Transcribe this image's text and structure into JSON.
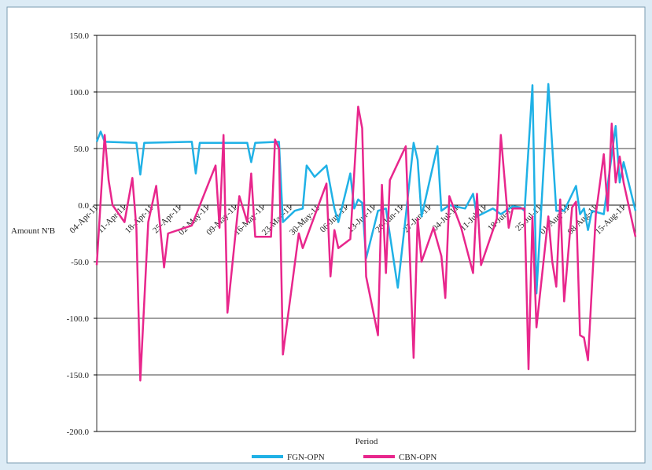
{
  "chart_data": {
    "type": "line",
    "x_label": "Period",
    "y_label": "Amount N'B",
    "xlim": [
      "2011-04-04",
      "2011-08-18"
    ],
    "xticks": [
      {
        "value": "2011-04-04",
        "label": "04-Apr-11"
      },
      {
        "value": "2011-04-11",
        "label": "11-Apr-11"
      },
      {
        "value": "2011-04-18",
        "label": "18-Apr-11"
      },
      {
        "value": "2011-04-25",
        "label": "25-Apr-11"
      },
      {
        "value": "2011-05-02",
        "label": "02-May-11"
      },
      {
        "value": "2011-05-09",
        "label": "09-May-11"
      },
      {
        "value": "2011-05-16",
        "label": "16-May-11"
      },
      {
        "value": "2011-05-23",
        "label": "23-May-11"
      },
      {
        "value": "2011-05-30",
        "label": "30-May-11"
      },
      {
        "value": "2011-06-06",
        "label": "06-Jun-11"
      },
      {
        "value": "2011-06-13",
        "label": "13-Jun-11"
      },
      {
        "value": "2011-06-20",
        "label": "20-Jun-11"
      },
      {
        "value": "2011-06-27",
        "label": "27-Jun-11"
      },
      {
        "value": "2011-07-04",
        "label": "04-Jul-11"
      },
      {
        "value": "2011-07-11",
        "label": "11-Jul-11"
      },
      {
        "value": "2011-07-18",
        "label": "18-Jul-11"
      },
      {
        "value": "2011-07-25",
        "label": "25-Jul-11"
      },
      {
        "value": "2011-08-01",
        "label": "01-Aug-11"
      },
      {
        "value": "2011-08-08",
        "label": "08-Aug-11"
      },
      {
        "value": "2011-08-15",
        "label": "15-Aug-11"
      }
    ],
    "ylim": [
      -200,
      150
    ],
    "yticks": [
      {
        "value": -200,
        "label": "-200.0"
      },
      {
        "value": -150,
        "label": "-150.0"
      },
      {
        "value": -100,
        "label": "-100.0"
      },
      {
        "value": -50,
        "label": "-50.0"
      },
      {
        "value": 0,
        "label": "0.0"
      },
      {
        "value": 50,
        "label": "50.0"
      },
      {
        "value": 100,
        "label": "100.0"
      },
      {
        "value": 150,
        "label": "150.0"
      }
    ],
    "grid": true,
    "legend": "bottom",
    "series": [
      {
        "name": "FGN-OPN",
        "color": "#1fb1e6",
        "x": [
          "2011-04-04",
          "2011-04-05",
          "2011-04-06",
          "2011-04-14",
          "2011-04-15",
          "2011-04-16",
          "2011-04-28",
          "2011-04-29",
          "2011-04-30",
          "2011-05-12",
          "2011-05-13",
          "2011-05-14",
          "2011-05-20",
          "2011-05-21",
          "2011-05-24",
          "2011-05-26",
          "2011-05-27",
          "2011-05-29",
          "2011-06-01",
          "2011-06-03",
          "2011-06-04",
          "2011-06-07",
          "2011-06-08",
          "2011-06-09",
          "2011-06-10",
          "2011-06-11",
          "2011-06-14",
          "2011-06-16",
          "2011-06-19",
          "2011-06-21",
          "2011-06-23",
          "2011-06-24",
          "2011-06-25",
          "2011-06-29",
          "2011-06-30",
          "2011-07-02",
          "2011-07-06",
          "2011-07-08",
          "2011-07-09",
          "2011-07-13",
          "2011-07-15",
          "2011-07-18",
          "2011-07-20",
          "2011-07-21",
          "2011-07-23",
          "2011-07-24",
          "2011-07-27",
          "2011-07-29",
          "2011-07-31",
          "2011-08-03",
          "2011-08-04",
          "2011-08-05",
          "2011-08-06",
          "2011-08-07",
          "2011-08-10",
          "2011-08-13",
          "2011-08-14",
          "2011-08-15",
          "2011-08-18"
        ],
        "values": [
          56,
          65,
          56,
          55,
          27,
          55,
          56,
          28,
          55,
          55,
          38,
          55,
          56,
          -15,
          -5,
          -3,
          35,
          25,
          35,
          -3,
          -15,
          28,
          -3,
          5,
          2,
          -47,
          -5,
          -3,
          -73,
          -10,
          55,
          40,
          -10,
          52,
          -5,
          0,
          -3,
          10,
          -10,
          -3,
          -8,
          -1,
          -2,
          -5,
          106,
          -78,
          107,
          -5,
          -5,
          17,
          -8,
          -3,
          -22,
          -5,
          -8,
          70,
          20,
          38,
          -5
        ]
      },
      {
        "name": "CBN-OPN",
        "color": "#e8268c",
        "x": [
          "2011-04-04",
          "2011-04-06",
          "2011-04-07",
          "2011-04-08",
          "2011-04-11",
          "2011-04-13",
          "2011-04-14",
          "2011-04-15",
          "2011-04-17",
          "2011-04-19",
          "2011-04-21",
          "2011-04-22",
          "2011-04-28",
          "2011-05-04",
          "2011-05-05",
          "2011-05-06",
          "2011-05-07",
          "2011-05-10",
          "2011-05-12",
          "2011-05-13",
          "2011-05-14",
          "2011-05-18",
          "2011-05-19",
          "2011-05-20",
          "2011-05-21",
          "2011-05-25",
          "2011-05-26",
          "2011-06-01",
          "2011-06-02",
          "2011-06-03",
          "2011-06-04",
          "2011-06-07",
          "2011-06-09",
          "2011-06-10",
          "2011-06-11",
          "2011-06-14",
          "2011-06-15",
          "2011-06-16",
          "2011-06-17",
          "2011-06-21",
          "2011-06-23",
          "2011-06-24",
          "2011-06-25",
          "2011-06-28",
          "2011-06-30",
          "2011-07-01",
          "2011-07-02",
          "2011-07-05",
          "2011-07-08",
          "2011-07-09",
          "2011-07-10",
          "2011-07-14",
          "2011-07-15",
          "2011-07-17",
          "2011-07-18",
          "2011-07-21",
          "2011-07-22",
          "2011-07-23",
          "2011-07-24",
          "2011-07-27",
          "2011-07-28",
          "2011-07-29",
          "2011-07-30",
          "2011-07-31",
          "2011-08-02",
          "2011-08-03",
          "2011-08-04",
          "2011-08-05",
          "2011-08-06",
          "2011-08-08",
          "2011-08-10",
          "2011-08-11",
          "2011-08-12",
          "2011-08-13",
          "2011-08-14",
          "2011-08-15",
          "2011-08-18"
        ],
        "values": [
          -53,
          62,
          22,
          0,
          -15,
          24,
          -20,
          -155,
          -15,
          17,
          -55,
          -25,
          -18,
          35,
          -20,
          62,
          -95,
          8,
          -15,
          28,
          -28,
          -28,
          58,
          50,
          -132,
          -25,
          -38,
          19,
          -63,
          -22,
          -38,
          -30,
          87,
          68,
          -63,
          -115,
          18,
          -60,
          22,
          52,
          -135,
          -12,
          -50,
          -20,
          -45,
          -82,
          8,
          -20,
          -60,
          10,
          -53,
          -12,
          62,
          -20,
          -3,
          -3,
          -145,
          -10,
          -108,
          -10,
          -50,
          -72,
          5,
          -85,
          -2,
          3,
          -115,
          -117,
          -137,
          -8,
          45,
          -5,
          72,
          20,
          43,
          20,
          -28
        ]
      }
    ]
  }
}
